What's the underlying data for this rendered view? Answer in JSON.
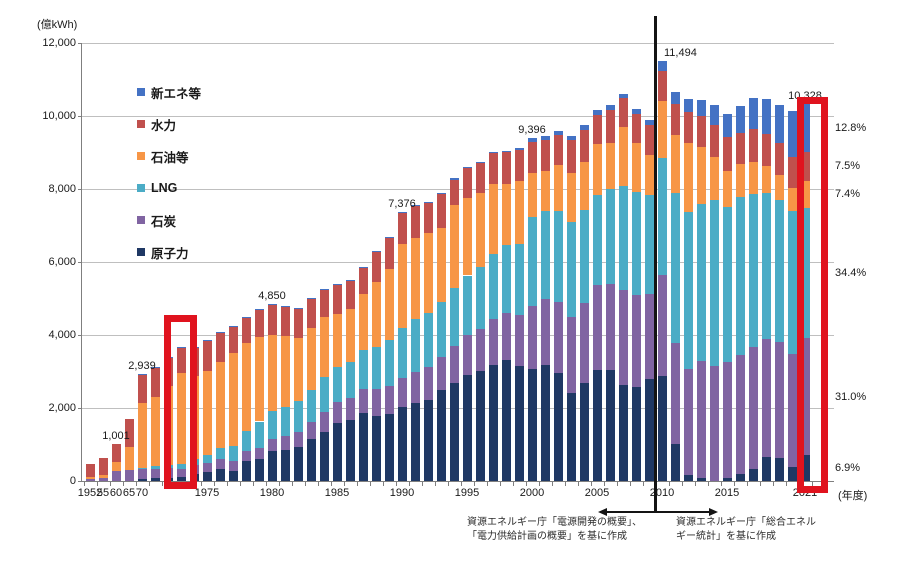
{
  "axis_units": {
    "y_unit": "(億kWh)",
    "x_unit": "(年度)"
  },
  "y_axis": {
    "max": 12000,
    "step": 2000,
    "tick_labels": [
      "12,000",
      "10,000",
      "8,000",
      "6,000",
      "4,000",
      "2,000",
      "0"
    ]
  },
  "legend": [
    {
      "key": "new",
      "label": "新エネ等",
      "color": "#4472C4"
    },
    {
      "key": "hydro",
      "label": "水力",
      "color": "#C0504D"
    },
    {
      "key": "oil",
      "label": "石油等",
      "color": "#F79646"
    },
    {
      "key": "lng",
      "label": "LNG",
      "color": "#4BACC6"
    },
    {
      "key": "coal",
      "label": "石炭",
      "color": "#8064A2"
    },
    {
      "key": "nuclear",
      "label": "原子力",
      "color": "#1F3864"
    }
  ],
  "chart_data": {
    "type": "bar",
    "stacked": true,
    "title": "",
    "xlabel": "(年度)",
    "ylabel": "(億kWh)",
    "ylim": [
      0,
      12000
    ],
    "grid": true,
    "categories": [
      "1952",
      "1955",
      "1960",
      "1965",
      "1970",
      "1971",
      "1972",
      "1973",
      "1974",
      "1975",
      "1976",
      "1977",
      "1978",
      "1979",
      "1980",
      "1981",
      "1982",
      "1983",
      "1984",
      "1985",
      "1986",
      "1987",
      "1988",
      "1989",
      "1990",
      "1991",
      "1992",
      "1993",
      "1994",
      "1995",
      "1996",
      "1997",
      "1998",
      "1999",
      "2000",
      "2001",
      "2002",
      "2003",
      "2004",
      "2005",
      "2006",
      "2007",
      "2008",
      "2009",
      "2010",
      "2011",
      "2012",
      "2013",
      "2014",
      "2015",
      "2016",
      "2017",
      "2018",
      "2019",
      "2020",
      "2021"
    ],
    "series": [
      {
        "key": "nuclear",
        "name": "原子力",
        "color": "#1F3864",
        "values": [
          0,
          0,
          0,
          0,
          46,
          80,
          93,
          97,
          200,
          251,
          340,
          280,
          536,
          610,
          825,
          840,
          930,
          1140,
          1340,
          1590,
          1680,
          1876,
          1790,
          1830,
          2023,
          2130,
          2230,
          2490,
          2690,
          2910,
          3020,
          3190,
          3320,
          3150,
          3055,
          3190,
          2950,
          2400,
          2680,
          3040,
          3030,
          2640,
          2580,
          2800,
          2882,
          1018,
          159,
          93,
          0,
          94,
          181,
          329,
          649,
          638,
          388,
          713
        ]
      },
      {
        "key": "coal",
        "name": "石炭",
        "color": "#8064A2",
        "values": [
          55,
          95,
          265,
          310,
          280,
          260,
          250,
          240,
          230,
          230,
          250,
          270,
          280,
          300,
          330,
          380,
          420,
          480,
          550,
          580,
          600,
          650,
          720,
          780,
          800,
          850,
          880,
          920,
          1000,
          1080,
          1150,
          1250,
          1290,
          1400,
          1736,
          1800,
          1950,
          2100,
          2200,
          2340,
          2380,
          2600,
          2520,
          2330,
          2770,
          2750,
          2900,
          3200,
          3150,
          3170,
          3270,
          3330,
          3230,
          3180,
          3100,
          3202
        ]
      },
      {
        "key": "lng",
        "name": "LNG",
        "color": "#4BACC6",
        "values": [
          0,
          0,
          0,
          0,
          40,
          70,
          100,
          130,
          180,
          240,
          320,
          400,
          550,
          720,
          750,
          800,
          830,
          880,
          950,
          960,
          990,
          1050,
          1150,
          1250,
          1380,
          1450,
          1480,
          1500,
          1600,
          1640,
          1700,
          1790,
          1850,
          1950,
          2452,
          2400,
          2500,
          2600,
          2550,
          2450,
          2600,
          2850,
          2810,
          2700,
          3190,
          4130,
          4320,
          4290,
          4550,
          4250,
          4320,
          4210,
          4020,
          3890,
          3900,
          3553
        ]
      },
      {
        "key": "oil",
        "name": "石油等",
        "color": "#F79646",
        "values": [
          45,
          75,
          255,
          630,
          1760,
          1900,
          2150,
          2480,
          2270,
          2280,
          2350,
          2550,
          2420,
          2320,
          2100,
          1950,
          1750,
          1700,
          1650,
          1450,
          1450,
          1550,
          1780,
          1950,
          2280,
          2220,
          2200,
          2020,
          2270,
          2110,
          2010,
          1900,
          1680,
          1720,
          1187,
          1100,
          1250,
          1350,
          1300,
          1400,
          1250,
          1600,
          1350,
          1100,
          1560,
          1580,
          1890,
          1570,
          1180,
          990,
          910,
          880,
          730,
          680,
          640,
          764
        ]
      },
      {
        "key": "hydro",
        "name": "水力",
        "color": "#C0504D",
        "values": [
          358,
          450,
          481,
          750,
          800,
          790,
          800,
          700,
          765,
          856,
          800,
          720,
          700,
          750,
          829,
          810,
          800,
          790,
          740,
          810,
          780,
          730,
          830,
          850,
          870,
          900,
          830,
          930,
          700,
          840,
          830,
          850,
          870,
          850,
          869,
          850,
          830,
          880,
          890,
          800,
          900,
          790,
          790,
          810,
          838,
          850,
          830,
          850,
          870,
          910,
          840,
          900,
          870,
          870,
          860,
          775
        ]
      },
      {
        "key": "new",
        "name": "新エネ等",
        "color": "#4472C4",
        "values": [
          0,
          0,
          0,
          0,
          13,
          14,
          14,
          15,
          15,
          15,
          15,
          15,
          16,
          16,
          16,
          16,
          17,
          17,
          18,
          18,
          18,
          19,
          20,
          21,
          23,
          24,
          25,
          26,
          28,
          30,
          33,
          36,
          40,
          45,
          97,
          100,
          110,
          115,
          120,
          125,
          130,
          135,
          140,
          150,
          254,
          330,
          370,
          440,
          540,
          650,
          740,
          850,
          960,
          1030,
          1240,
          1321
        ]
      }
    ],
    "data_labels": [
      {
        "year": "1960",
        "text": "1,001"
      },
      {
        "year": "1970",
        "text": "2,939"
      },
      {
        "year": "1980",
        "text": "4,850"
      },
      {
        "year": "1990",
        "text": "7,376"
      },
      {
        "year": "2000",
        "text": "9,396"
      },
      {
        "year": "2010",
        "text": "11,494",
        "align": "left"
      },
      {
        "year": "2021",
        "text": "10,328"
      }
    ],
    "x_tick_labels": [
      {
        "label": "1952",
        "year": "1952"
      },
      {
        "label": "55",
        "year": "1955"
      },
      {
        "label": "60",
        "year": "1960"
      },
      {
        "label": "65",
        "year": "1965"
      },
      {
        "label": "70",
        "year": "1970"
      },
      {
        "label": "1975",
        "year": "1975"
      },
      {
        "label": "1980",
        "year": "1980"
      },
      {
        "label": "1985",
        "year": "1985"
      },
      {
        "label": "1990",
        "year": "1990"
      },
      {
        "label": "1995",
        "year": "1995"
      },
      {
        "label": "2000",
        "year": "2000"
      },
      {
        "label": "2005",
        "year": "2005"
      },
      {
        "label": "2010",
        "year": "2010"
      },
      {
        "label": "2015",
        "year": "2015"
      },
      {
        "label": "2021",
        "year": "2021"
      }
    ],
    "percent_labels_2021": [
      {
        "series": "new",
        "text": "12.8%"
      },
      {
        "series": "hydro",
        "text": "7.5%"
      },
      {
        "series": "oil",
        "text": "7.4%"
      },
      {
        "series": "lng",
        "text": "34.4%"
      },
      {
        "series": "coal",
        "text": "31.0%"
      },
      {
        "series": "nuclear",
        "text": "6.9%"
      }
    ]
  },
  "highlights": [
    {
      "year": "1973",
      "top_value": 4550,
      "dx": -17,
      "width": 33,
      "bottom_overhang": 8,
      "color": "#E0131E",
      "border": 7
    },
    {
      "year": "2021",
      "top_value": 10520,
      "dx": -8,
      "width": 31,
      "bottom_overhang": 12,
      "color": "#E0131E",
      "border": 7
    }
  ],
  "separator": {
    "year": "2010"
  },
  "annotations": {
    "left_line1": "資源エネルギー庁「電源開発の概要」、",
    "left_line2": "「電力供給計画の概要」を基に作成",
    "right_line1": "資源エネルギー庁「総合エネル",
    "right_line2": "ギー統計」を基に作成"
  }
}
